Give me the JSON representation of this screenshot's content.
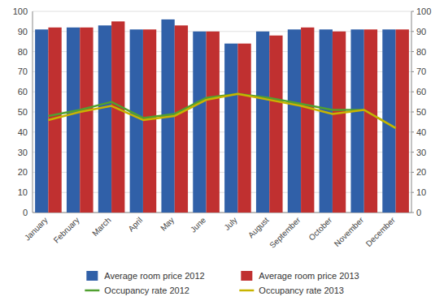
{
  "chart_data": {
    "type": "bar",
    "categories": [
      "January",
      "February",
      "March",
      "April",
      "May",
      "June",
      "July",
      "August",
      "September",
      "October",
      "November",
      "December"
    ],
    "series": [
      {
        "name": "Average room price 2012",
        "type": "bar",
        "color": "#3060A8",
        "values": [
          91,
          92,
          93,
          91,
          96,
          90,
          84,
          90,
          91,
          91,
          91,
          91
        ]
      },
      {
        "name": "Average room price 2013",
        "type": "bar",
        "color": "#C03030",
        "values": [
          92,
          92,
          95,
          91,
          93,
          90,
          84,
          88,
          92,
          90,
          91,
          91
        ]
      },
      {
        "name": "Occupancy rate 2012",
        "type": "line",
        "axis": "y2",
        "color": "#50A030",
        "values": [
          48,
          51,
          55,
          47,
          49,
          57,
          59,
          57,
          54,
          51,
          51,
          42
        ]
      },
      {
        "name": "Occupancy rate 2013",
        "type": "line",
        "axis": "y2",
        "color": "#C8B400",
        "values": [
          46,
          50,
          53,
          46,
          48,
          56,
          59,
          56,
          53,
          49,
          51,
          42
        ]
      }
    ],
    "ylim": [
      0,
      100
    ],
    "yticks": [
      0,
      10,
      20,
      30,
      40,
      50,
      60,
      70,
      80,
      90,
      100
    ],
    "y2lim": [
      0,
      100
    ],
    "y2ticks": [
      0,
      10,
      20,
      30,
      40,
      50,
      60,
      70,
      80,
      90,
      100
    ],
    "grid": true,
    "legend": "bottom"
  }
}
